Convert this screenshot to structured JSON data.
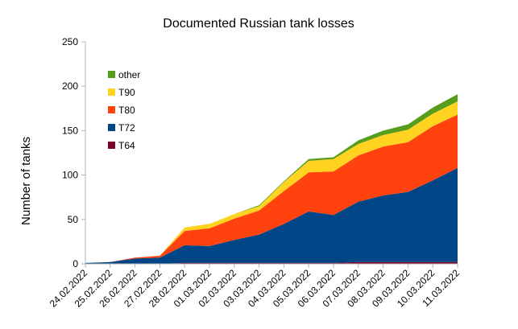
{
  "chart_data": {
    "type": "area",
    "stacked": true,
    "title": "Documented Russian tank losses",
    "xlabel": "",
    "ylabel": "Number of tanks",
    "ylim": [
      0,
      250
    ],
    "yticks": [
      0,
      50,
      100,
      150,
      200,
      250
    ],
    "grid": false,
    "legend_position": "top-left",
    "categories": [
      "24.02.2022",
      "25.02.2022",
      "26.02.2022",
      "27.02.2022",
      "28.02.2022",
      "01.03.2022",
      "02.03.2022",
      "03.03.2022",
      "04.03.2022",
      "05.03.2022",
      "06.03.2022",
      "07.03.2022",
      "08.03.2022",
      "09.03.2022",
      "10.03.2022",
      "11.03.2022"
    ],
    "series": [
      {
        "name": "T64",
        "color": "#7b0028",
        "values": [
          0,
          0,
          0,
          0,
          1,
          1,
          1,
          1,
          1,
          1,
          1,
          2,
          2,
          2,
          2,
          2
        ]
      },
      {
        "name": "T72",
        "color": "#004586",
        "values": [
          1,
          2,
          6,
          7,
          20,
          19,
          26,
          32,
          44,
          58,
          54,
          68,
          75,
          79,
          92,
          106
        ]
      },
      {
        "name": "T80",
        "color": "#ff420e",
        "values": [
          0,
          0,
          1,
          2,
          16,
          20,
          24,
          27,
          37,
          44,
          49,
          52,
          55,
          56,
          61,
          60
        ]
      },
      {
        "name": "T90",
        "color": "#ffd320",
        "values": [
          0,
          0,
          0,
          0,
          4,
          5,
          5,
          5,
          10,
          13,
          14,
          13,
          13,
          14,
          14,
          15
        ]
      },
      {
        "name": "other",
        "color": "#579d1c",
        "values": [
          0,
          0,
          0,
          0,
          0,
          0,
          0,
          1,
          1,
          2,
          2,
          4,
          5,
          6,
          7,
          8
        ]
      }
    ]
  }
}
